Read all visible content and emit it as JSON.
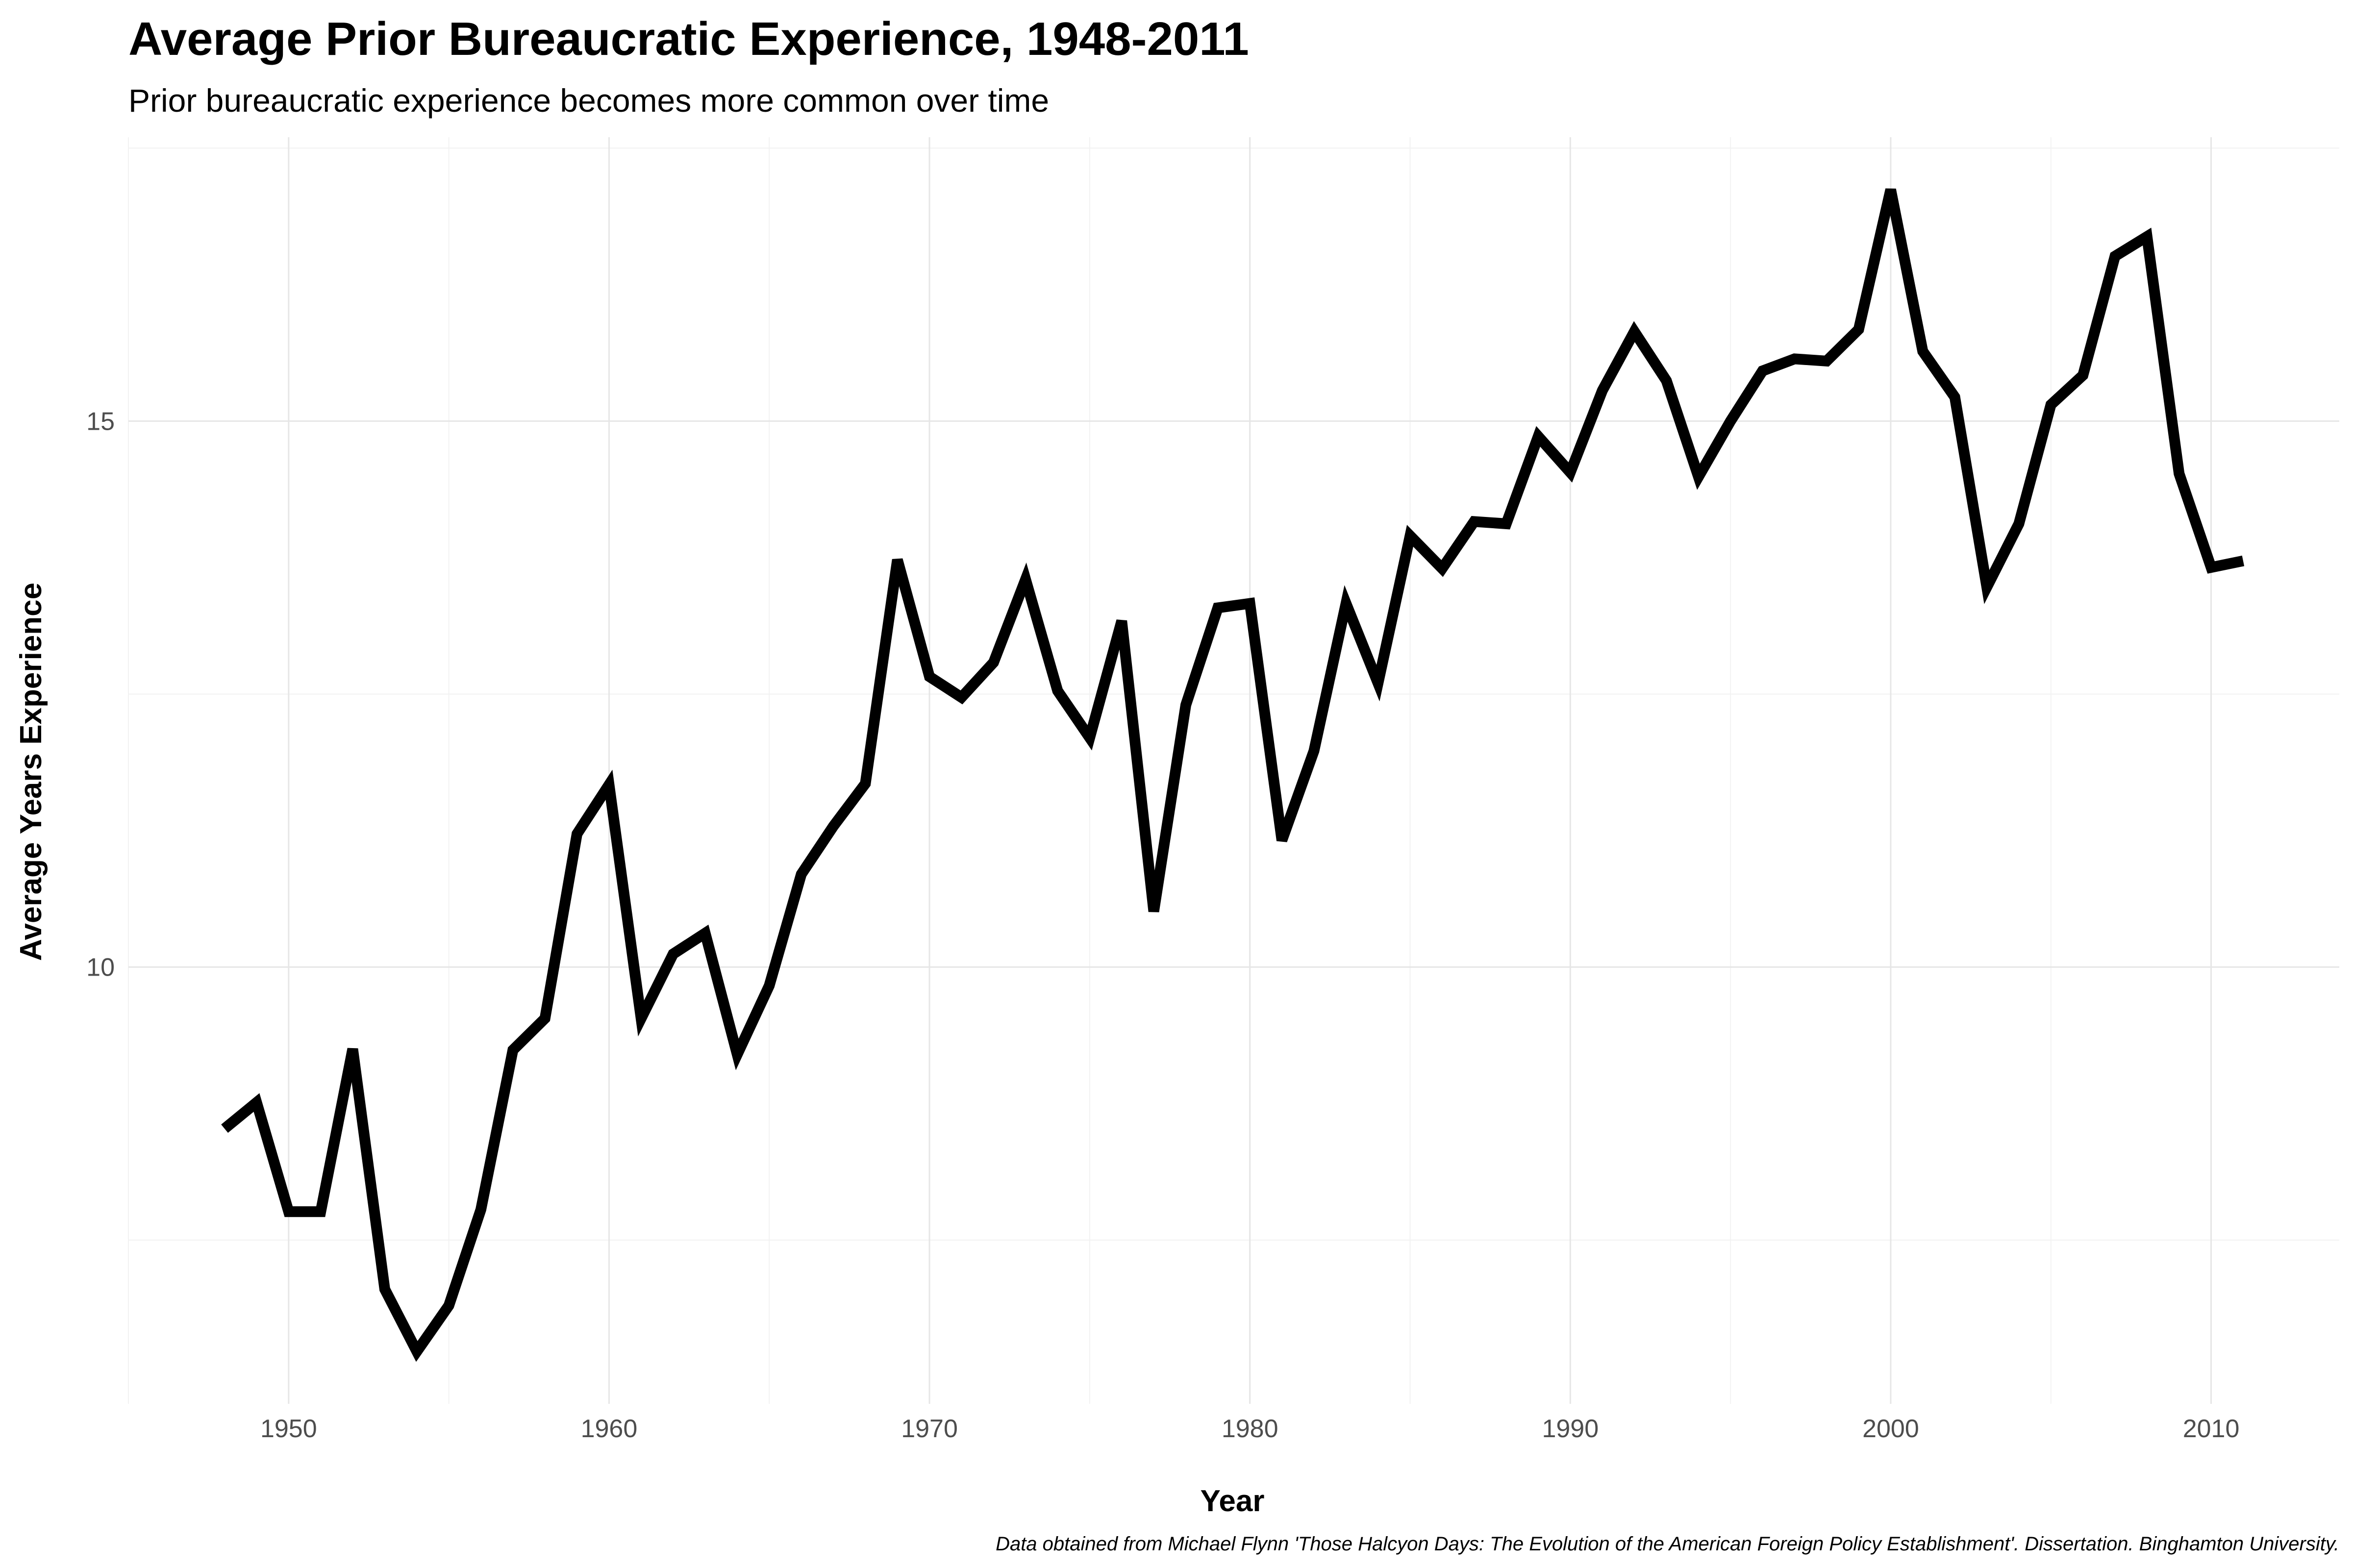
{
  "chart_data": {
    "type": "line",
    "title": "Average Prior Bureaucratic Experience, 1948-2011",
    "subtitle": "Prior bureaucratic experience becomes more common over time",
    "xlabel": "Year",
    "ylabel": "Average Years Experience",
    "caption": "Data obtained from Michael Flynn 'Those Halcyon Days: The Evolution of the American Foreign Policy Establishment'. Dissertation. Binghamton University.",
    "xlim": [
      1945,
      2014
    ],
    "ylim": [
      6.0,
      17.6
    ],
    "x_ticks": [
      1950,
      1960,
      1970,
      1980,
      1990,
      2000,
      2010
    ],
    "y_ticks": [
      10,
      15
    ],
    "grid": true,
    "line_color": "#000000",
    "series": [
      {
        "x": [
          1948,
          1949,
          1950,
          1951,
          1952,
          1953,
          1954,
          1955,
          1956,
          1957,
          1958,
          1959,
          1960,
          1961,
          1962,
          1963,
          1964,
          1965,
          1966,
          1967,
          1968,
          1969,
          1970,
          1971,
          1972,
          1973,
          1974,
          1975,
          1976,
          1977,
          1978,
          1979,
          1980,
          1981,
          1982,
          1983,
          1984,
          1985,
          1986,
          1987,
          1988,
          1989,
          1990,
          1991,
          1992,
          1993,
          1994,
          1995,
          1996,
          1997,
          1998,
          1999,
          2000,
          2001,
          2002,
          2003,
          2004,
          2005,
          2006,
          2007,
          2008,
          2009,
          2010,
          2011
        ],
        "values": [
          8.52,
          8.76,
          7.76,
          7.76,
          9.25,
          7.05,
          6.48,
          6.9,
          7.78,
          9.24,
          9.53,
          11.22,
          11.67,
          9.53,
          10.12,
          10.31,
          9.2,
          9.83,
          10.85,
          11.29,
          11.68,
          13.73,
          12.66,
          12.47,
          12.79,
          13.55,
          12.53,
          12.1,
          13.17,
          10.51,
          12.4,
          13.29,
          13.33,
          11.16,
          11.98,
          13.33,
          12.6,
          13.95,
          13.65,
          14.08,
          14.06,
          14.86,
          14.53,
          15.28,
          15.82,
          15.37,
          14.49,
          15.0,
          15.46,
          15.57,
          15.55,
          15.84,
          17.12,
          15.64,
          15.22,
          13.48,
          14.06,
          15.15,
          15.42,
          16.51,
          16.69,
          14.52,
          13.66,
          13.72
        ]
      }
    ]
  }
}
